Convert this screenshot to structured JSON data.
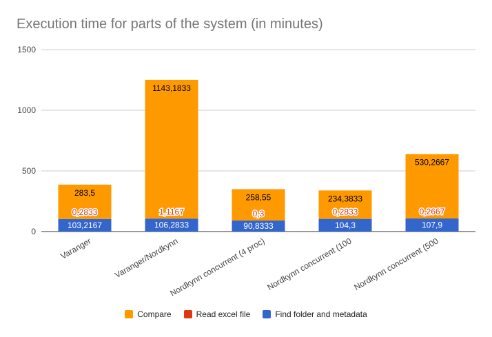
{
  "chart_data": {
    "type": "bar",
    "stacked": true,
    "title": "Execution time for parts of the system (in minutes)",
    "xlabel": "",
    "ylabel": "",
    "ylim": [
      0,
      1500
    ],
    "yticks": [
      0,
      500,
      1000,
      1500
    ],
    "grid": true,
    "legend_position": "bottom",
    "categories": [
      "Varanger",
      "Varanger/Nordkynn",
      "Nordkynn concurrent (4 proc)",
      "Nordkynn concurrent (100",
      "Nordkynn concurrent (500"
    ],
    "series": [
      {
        "name": "Find folder and metadata",
        "color": "#3366cc",
        "values": [
          103.2167,
          106.2833,
          90.8333,
          104.3,
          107.9
        ],
        "labels": [
          "103,2167",
          "106,2833",
          "90,8333",
          "104,3",
          "107,9"
        ]
      },
      {
        "name": "Read excel file",
        "color": "#dc3912",
        "values": [
          0.2833,
          1.1167,
          0.3,
          0.2833,
          0.2667
        ],
        "labels": [
          "0,2833",
          "1,1167",
          "0,3",
          "0,2833",
          "0,2667"
        ]
      },
      {
        "name": "Compare",
        "color": "#ff9900",
        "values": [
          283.5,
          1143.1833,
          258.55,
          234.3833,
          530.2667
        ],
        "labels": [
          "283,5",
          "1143,1833",
          "258,55",
          "234,3833",
          "530,2667"
        ]
      }
    ],
    "legend_order": [
      "Compare",
      "Read excel file",
      "Find folder and metadata"
    ]
  }
}
